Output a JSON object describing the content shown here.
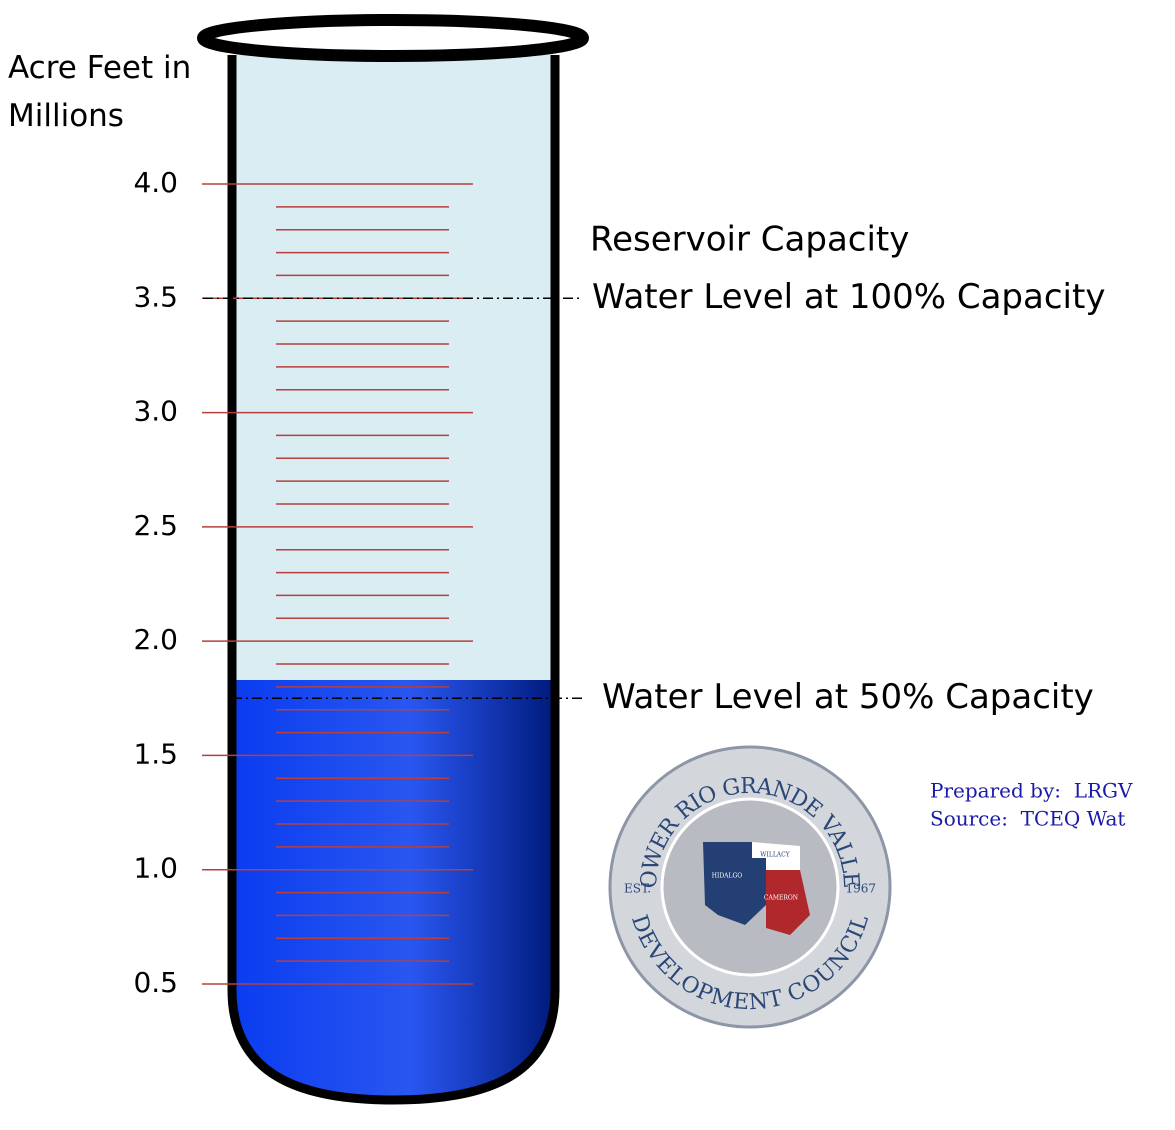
{
  "chart_data": {
    "type": "tube",
    "ylabel": "Acre Feet in Millions",
    "ylim": [
      0.5,
      4.0
    ],
    "yticks": [
      {
        "value": 0.5,
        "label": "0.5"
      },
      {
        "value": 1.0,
        "label": "1.0"
      },
      {
        "value": 1.5,
        "label": "1.5"
      },
      {
        "value": 2.0,
        "label": "2.0"
      },
      {
        "value": 2.5,
        "label": "2.5"
      },
      {
        "value": 3.0,
        "label": "3.0"
      },
      {
        "value": 3.5,
        "label": "3.5"
      },
      {
        "value": 4.0,
        "label": "4.0"
      }
    ],
    "minor_yticks": [
      0.6,
      0.7,
      0.8,
      0.9,
      1.1,
      1.2,
      1.3,
      1.4,
      1.6,
      1.7,
      1.8,
      1.9,
      2.1,
      2.2,
      2.3,
      2.4,
      2.6,
      2.7,
      2.8,
      2.9,
      3.1,
      3.2,
      3.3,
      3.4,
      3.6,
      3.7,
      3.8,
      3.9
    ],
    "water_level": 1.83,
    "tube_color": "#daedf2",
    "water_color": "#0a3cf0",
    "tick_color": "#b5403c",
    "annotations": [
      {
        "text": "Reservoir Capacity",
        "value": 3.75
      },
      {
        "text": "Water Level at 100% Capacity",
        "value": 3.5,
        "line": true
      },
      {
        "text": "Water Level at 50% Capacity",
        "value": 1.75,
        "line": true
      }
    ],
    "credits": [
      "Prepared by:  LRGV",
      "Source:  TCEQ Wat"
    ],
    "logo": {
      "top": "LOWER RIO GRANDE VALLEY",
      "bottom": "DEVELOPMENT COUNCIL",
      "est": "EST.",
      "year": "1967",
      "counties": [
        "HIDALGO",
        "WILLACY",
        "CAMERON"
      ]
    }
  }
}
